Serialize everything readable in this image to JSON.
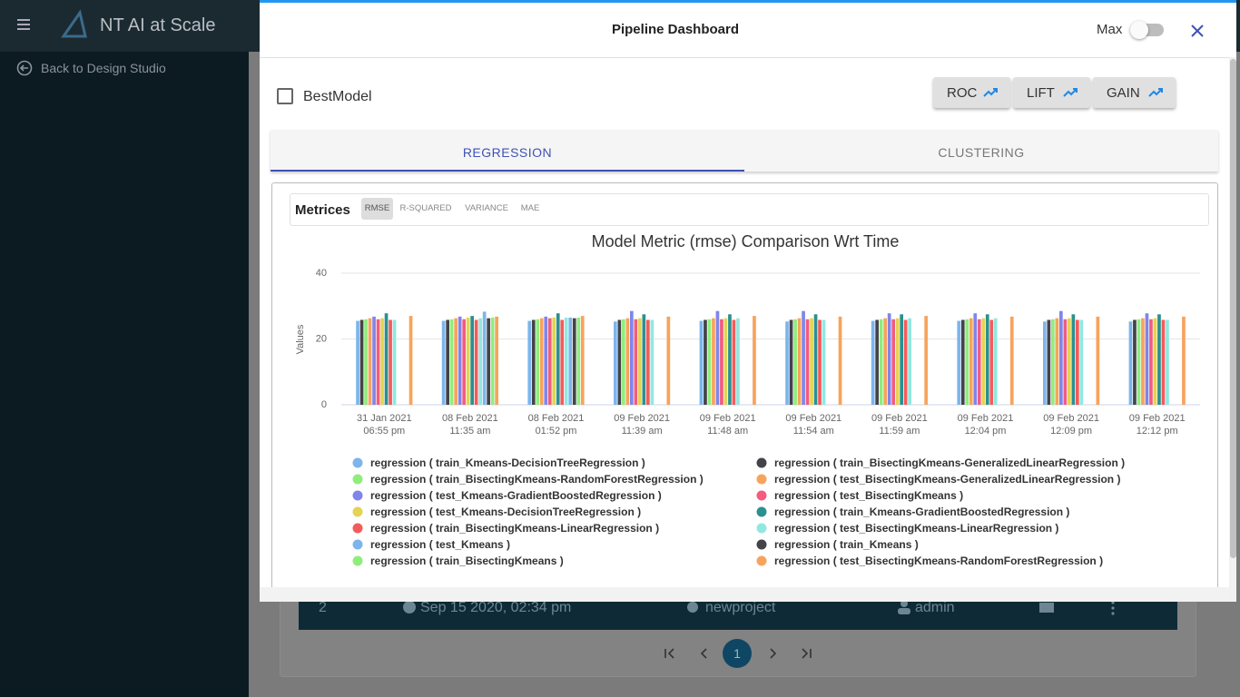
{
  "app": {
    "title": "NT AI at Scale",
    "back": "Back to Design Studio"
  },
  "background_table": {
    "row": [
      "2",
      "Sep 15 2020, 02:34 pm",
      "newproject",
      "admin"
    ],
    "current_page": "1"
  },
  "modal": {
    "title": "Pipeline Dashboard",
    "max": "Max",
    "checkbox": "BestModel",
    "buttons": [
      "ROC",
      "LIFT",
      "GAIN"
    ],
    "tabs": [
      "REGRESSION",
      "CLUSTERING"
    ],
    "metrics_label": "Metrices",
    "metric_tabs": [
      "RMSE",
      "R-SQUARED",
      "VARIANCE",
      "MAE"
    ]
  },
  "chart_data": {
    "type": "bar",
    "title": "Model Metric (rmse) Comparison Wrt Time",
    "y_label": "Values",
    "categories": [
      [
        "31 Jan 2021",
        "06:55 pm"
      ],
      [
        "08 Feb 2021",
        "11:35 am"
      ],
      [
        "08 Feb 2021",
        "01:52 pm"
      ],
      [
        "09 Feb 2021",
        "11:39 am"
      ],
      [
        "09 Feb 2021",
        "11:48 am"
      ],
      [
        "09 Feb 2021",
        "11:54 am"
      ],
      [
        "09 Feb 2021",
        "11:59 am"
      ],
      [
        "09 Feb 2021",
        "12:04 pm"
      ],
      [
        "09 Feb 2021",
        "12:09 pm"
      ],
      [
        "09 Feb 2021",
        "12:12 pm"
      ]
    ],
    "ylim": [
      0,
      40
    ],
    "yticks": [
      0,
      20,
      40
    ],
    "grid": true,
    "series": [
      {
        "name": "regression ( train_Kmeans-DecisionTreeRegression )",
        "color": "#7cb5ec",
        "values": [
          25.5,
          25.5,
          25.5,
          25.3,
          25.5,
          25.3,
          25.5,
          25.5,
          25.3,
          25.3
        ]
      },
      {
        "name": "regression ( train_BisectingKmeans-GeneralizedLinearRegression )",
        "color": "#434348",
        "values": [
          25.8,
          25.8,
          25.8,
          25.8,
          25.8,
          25.8,
          25.8,
          25.8,
          25.8,
          25.8
        ]
      },
      {
        "name": "regression ( train_BisectingKmeans-RandomForestRegression )",
        "color": "#90ed7d",
        "values": [
          26,
          26,
          26,
          26,
          26,
          26,
          26,
          26,
          26,
          26
        ]
      },
      {
        "name": "regression ( test_BisectingKmeans-GeneralizedLinearRegression )",
        "color": "#f7a35c",
        "values": [
          26.3,
          26.3,
          26.3,
          26.3,
          26.3,
          26.3,
          26.3,
          26.3,
          26.3,
          26.3
        ]
      },
      {
        "name": "regression ( test_Kmeans-GradientBoostedRegression )",
        "color": "#8085e9",
        "values": [
          26.8,
          26.8,
          26.8,
          28.5,
          28.5,
          28.5,
          27.8,
          27.8,
          28.5,
          27.8
        ]
      },
      {
        "name": "regression ( test_BisectingKmeans )",
        "color": "#f15c80",
        "values": [
          26,
          26,
          26.3,
          26,
          26,
          26,
          26,
          26,
          26,
          26
        ]
      },
      {
        "name": "regression ( test_Kmeans-DecisionTreeRegression )",
        "color": "#e4d354",
        "values": [
          26.3,
          26.5,
          26.5,
          26.3,
          26.3,
          26.3,
          26.3,
          26.3,
          26.3,
          26.3
        ]
      },
      {
        "name": "regression ( train_Kmeans-GradientBoostedRegression )",
        "color": "#2b908f",
        "values": [
          27.8,
          27,
          27.8,
          27.5,
          27.5,
          27.5,
          27.5,
          27.5,
          27.5,
          27.5
        ]
      },
      {
        "name": "regression ( train_BisectingKmeans-LinearRegression )",
        "color": "#f45b5b",
        "values": [
          25.8,
          25.8,
          25.8,
          25.8,
          25.8,
          25.8,
          25.8,
          25.8,
          25.8,
          25.8
        ]
      },
      {
        "name": "regression ( test_BisectingKmeans-LinearRegression )",
        "color": "#91e8e1",
        "values": [
          25.8,
          26.3,
          26.5,
          25.8,
          26.3,
          25.8,
          26.3,
          26.3,
          25.8,
          25.8
        ]
      },
      {
        "name": "regression ( test_Kmeans )",
        "color": "#7cb5ec",
        "values": [
          null,
          28.3,
          26.5,
          null,
          null,
          null,
          null,
          null,
          null,
          null
        ]
      },
      {
        "name": "regression ( train_Kmeans )",
        "color": "#434348",
        "values": [
          null,
          26.3,
          26.3,
          null,
          null,
          null,
          null,
          null,
          null,
          null
        ]
      },
      {
        "name": "regression ( train_BisectingKmeans )",
        "color": "#90ed7d",
        "values": [
          null,
          26.5,
          26.5,
          null,
          null,
          null,
          null,
          null,
          null,
          null
        ]
      },
      {
        "name": "regression ( test_BisectingKmeans-RandomForestRegression )",
        "color": "#f7a35c",
        "values": [
          27,
          26.8,
          27,
          26.8,
          27,
          26.8,
          27,
          26.8,
          26.8,
          26.8
        ]
      }
    ]
  }
}
